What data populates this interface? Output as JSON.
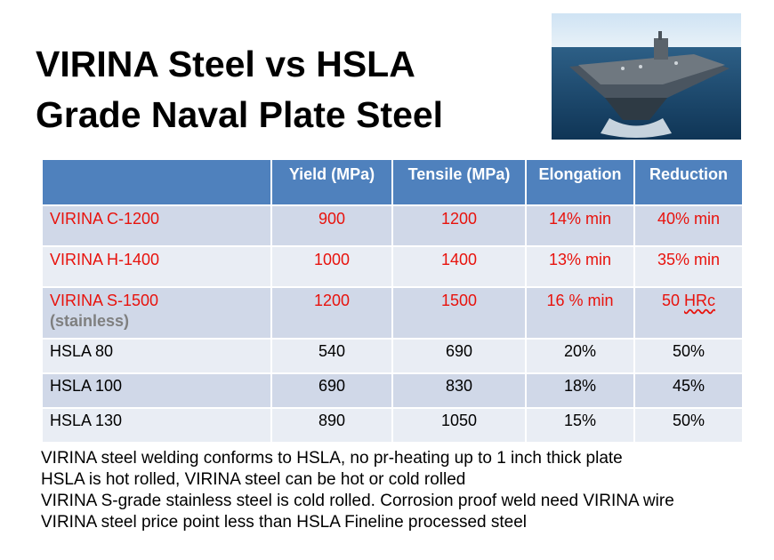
{
  "title": {
    "line1": "VIRINA Steel vs HSLA",
    "line2": "Grade Naval Plate Steel"
  },
  "image": {
    "subject": "aircraft-carrier-photo"
  },
  "table": {
    "headers": [
      "",
      "Yield (MPa)",
      "Tensile (MPa)",
      "Elongation",
      "Reduction"
    ],
    "rows": [
      {
        "name": "VIRINA C-1200",
        "sub": "",
        "yield": "900",
        "tensile": "1200",
        "elongation": "14% min",
        "reduction_num": "40% min",
        "reduction_unit": ""
      },
      {
        "name": "VIRINA H-1400",
        "sub": "",
        "yield": "1000",
        "tensile": "1400",
        "elongation": "13% min",
        "reduction_num": "35% min",
        "reduction_unit": ""
      },
      {
        "name": "VIRINA  S-1500",
        "sub": "(stainless)",
        "yield": "1200",
        "tensile": "1500",
        "elongation": "16 % min",
        "reduction_num": "50 ",
        "reduction_unit": "HRc"
      },
      {
        "name": "HSLA 80",
        "sub": "",
        "yield": "540",
        "tensile": "690",
        "elongation": "20%",
        "reduction_num": "50%",
        "reduction_unit": ""
      },
      {
        "name": "HSLA 100",
        "sub": "",
        "yield": "690",
        "tensile": "830",
        "elongation": "18%",
        "reduction_num": "45%",
        "reduction_unit": ""
      },
      {
        "name": "HSLA 130",
        "sub": "",
        "yield": "890",
        "tensile": "1050",
        "elongation": "15%",
        "reduction_num": "50%",
        "reduction_unit": ""
      }
    ]
  },
  "notes": [
    "VIRINA steel welding conforms to HSLA, no pr-heating up to 1 inch thick plate",
    "HSLA is hot rolled, VIRINA steel can be hot or cold rolled",
    "VIRINA S-grade stainless steel is cold rolled. Corrosion proof weld need VIRINA wire",
    "VIRINA steel price point less than HSLA Fineline processed steel"
  ],
  "colors": {
    "header_bg": "#4f81bd",
    "row_dark": "#d0d8e8",
    "row_light": "#e9edf4",
    "virina_text": "#e8120c"
  }
}
